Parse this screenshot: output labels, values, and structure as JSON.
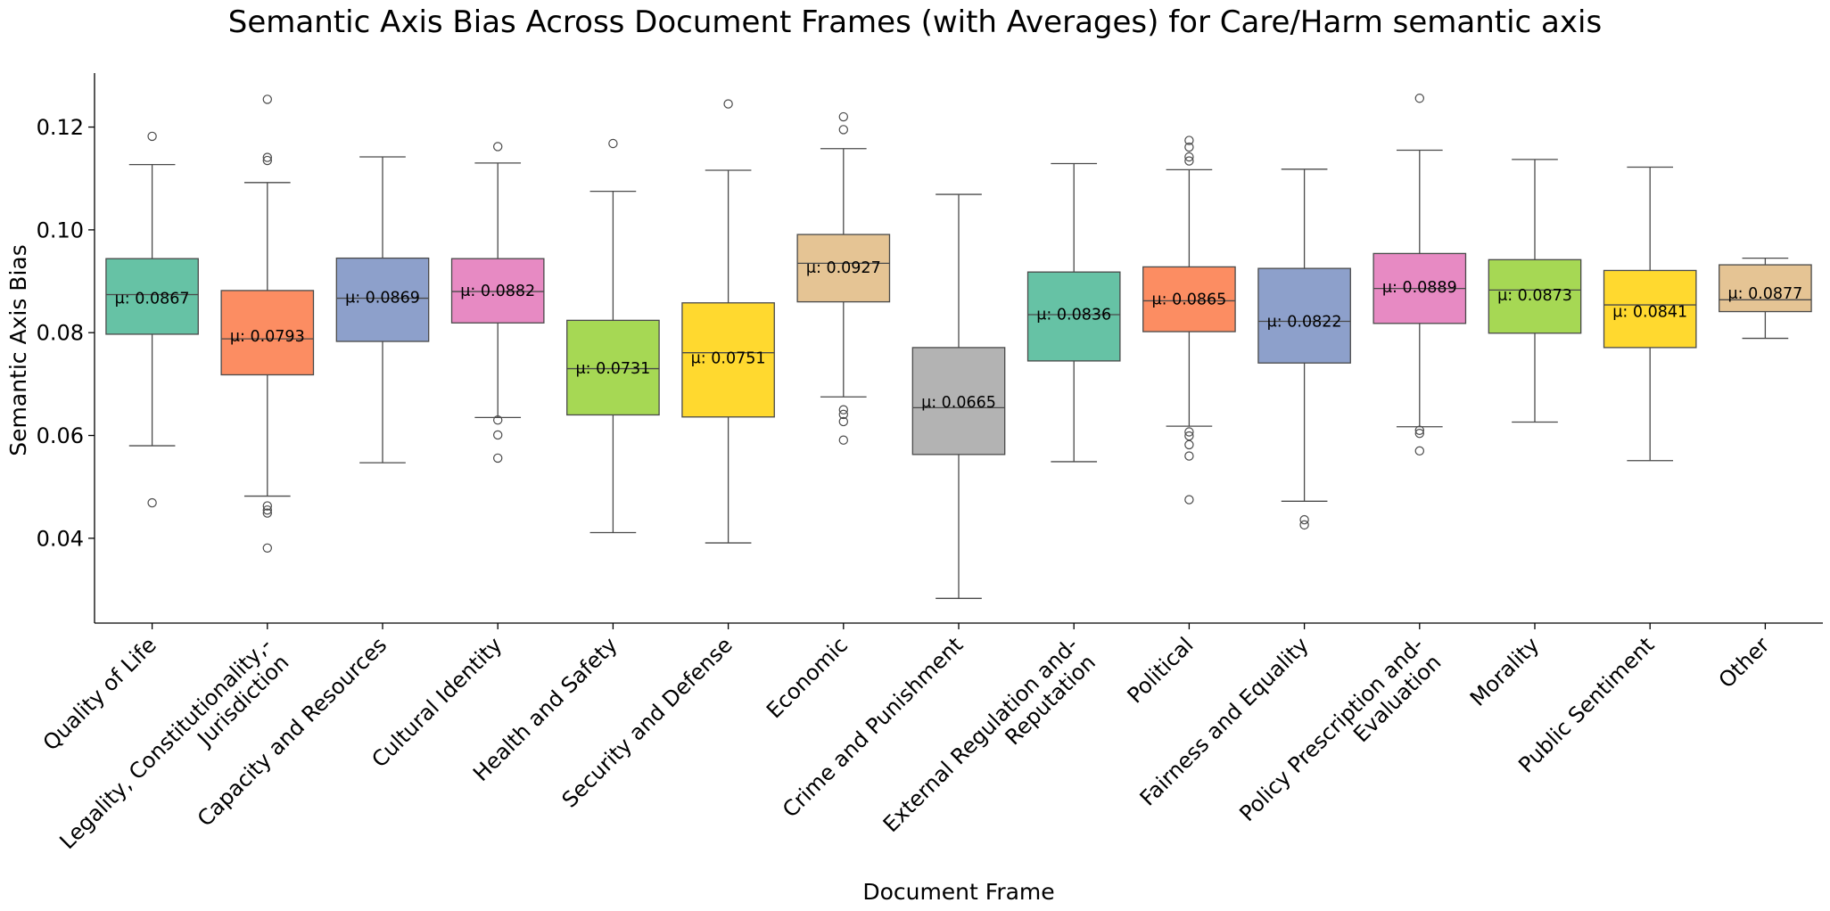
{
  "chart_data": {
    "type": "box",
    "title": "Semantic Axis Bias Across Document Frames (with Averages) for Care/Harm semantic axis",
    "xlabel": "Document Frame",
    "ylabel": "Semantic Axis Bias",
    "ylim": [
      0.0235,
      0.1305
    ],
    "yticks": [
      {
        "value": 0.04,
        "label": "0.04"
      },
      {
        "value": 0.06,
        "label": "0.06"
      },
      {
        "value": 0.08,
        "label": "0.08"
      },
      {
        "value": 0.1,
        "label": "0.10"
      },
      {
        "value": 0.12,
        "label": "0.12"
      }
    ],
    "grid": false,
    "legend": "none",
    "mean_prefix": "μ: ",
    "categories": [
      {
        "label": [
          "Quality of Life"
        ],
        "color": "#66c2a5",
        "mean": "0.0867",
        "q1": 0.0797,
        "median": 0.0874,
        "q3": 0.0944,
        "whisker_low": 0.058,
        "whisker_high": 0.1127,
        "fliers": [
          0.1182,
          0.0469
        ]
      },
      {
        "label": [
          "Legality, Constitutionality,-",
          "Jurisdiction"
        ],
        "color": "#fc8d62",
        "mean": "0.0793",
        "q1": 0.0718,
        "median": 0.0788,
        "q3": 0.0882,
        "whisker_low": 0.0482,
        "whisker_high": 0.1092,
        "fliers": [
          0.1254,
          0.1141,
          0.1135,
          0.0463,
          0.0455,
          0.0449,
          0.0381
        ]
      },
      {
        "label": [
          "Capacity and Resources"
        ],
        "color": "#8da0cb",
        "mean": "0.0869",
        "q1": 0.0783,
        "median": 0.0867,
        "q3": 0.0945,
        "whisker_low": 0.0547,
        "whisker_high": 0.1142,
        "fliers": []
      },
      {
        "label": [
          "Cultural Identity"
        ],
        "color": "#e78ac3",
        "mean": "0.0882",
        "q1": 0.0819,
        "median": 0.088,
        "q3": 0.0944,
        "whisker_low": 0.0635,
        "whisker_high": 0.113,
        "fliers": [
          0.1162,
          0.063,
          0.0601,
          0.0556
        ]
      },
      {
        "label": [
          "Health and Safety"
        ],
        "color": "#a6d854",
        "mean": "0.0731",
        "q1": 0.064,
        "median": 0.073,
        "q3": 0.0824,
        "whisker_low": 0.0411,
        "whisker_high": 0.1075,
        "fliers": [
          0.1168
        ]
      },
      {
        "label": [
          "Security and Defense"
        ],
        "color": "#ffd92f",
        "mean": "0.0751",
        "q1": 0.0636,
        "median": 0.0761,
        "q3": 0.0858,
        "whisker_low": 0.0391,
        "whisker_high": 0.1116,
        "fliers": [
          0.1245
        ]
      },
      {
        "label": [
          "Economic"
        ],
        "color": "#e5c494",
        "mean": "0.0927",
        "q1": 0.086,
        "median": 0.0935,
        "q3": 0.0991,
        "whisker_low": 0.0675,
        "whisker_high": 0.1158,
        "fliers": [
          0.122,
          0.1195,
          0.065,
          0.0641,
          0.0627,
          0.0591
        ]
      },
      {
        "label": [
          "Crime and Punishment"
        ],
        "color": "#b3b3b3",
        "mean": "0.0665",
        "q1": 0.0563,
        "median": 0.0654,
        "q3": 0.0771,
        "whisker_low": 0.0283,
        "whisker_high": 0.1069,
        "fliers": []
      },
      {
        "label": [
          "External Regulation and-",
          "Reputation"
        ],
        "color": "#66c2a5",
        "mean": "0.0836",
        "q1": 0.0745,
        "median": 0.0835,
        "q3": 0.0918,
        "whisker_low": 0.0549,
        "whisker_high": 0.1129,
        "fliers": []
      },
      {
        "label": [
          "Political"
        ],
        "color": "#fc8d62",
        "mean": "0.0865",
        "q1": 0.0802,
        "median": 0.0862,
        "q3": 0.0928,
        "whisker_low": 0.0618,
        "whisker_high": 0.1117,
        "fliers": [
          0.1174,
          0.1161,
          0.1142,
          0.1134,
          0.0607,
          0.0599,
          0.0582,
          0.056,
          0.0475
        ]
      },
      {
        "label": [
          "Fairness and Equality"
        ],
        "color": "#8da0cb",
        "mean": "0.0822",
        "q1": 0.0741,
        "median": 0.0822,
        "q3": 0.0925,
        "whisker_low": 0.0472,
        "whisker_high": 0.1118,
        "fliers": [
          0.0436,
          0.0426
        ]
      },
      {
        "label": [
          "Policy Prescription and-",
          "Evaluation"
        ],
        "color": "#e78ac3",
        "mean": "0.0889",
        "q1": 0.0818,
        "median": 0.0886,
        "q3": 0.0954,
        "whisker_low": 0.0617,
        "whisker_high": 0.1155,
        "fliers": [
          0.1256,
          0.061,
          0.0604,
          0.057
        ]
      },
      {
        "label": [
          "Morality"
        ],
        "color": "#a6d854",
        "mean": "0.0873",
        "q1": 0.0799,
        "median": 0.0883,
        "q3": 0.0942,
        "whisker_low": 0.0626,
        "whisker_high": 0.1137,
        "fliers": []
      },
      {
        "label": [
          "Public Sentiment"
        ],
        "color": "#ffd92f",
        "mean": "0.0841",
        "q1": 0.0771,
        "median": 0.0854,
        "q3": 0.0921,
        "whisker_low": 0.0551,
        "whisker_high": 0.1122,
        "fliers": []
      },
      {
        "label": [
          "Other"
        ],
        "color": "#e5c494",
        "mean": "0.0877",
        "q1": 0.0841,
        "median": 0.0864,
        "q3": 0.0932,
        "whisker_low": 0.0789,
        "whisker_high": 0.0945,
        "fliers": []
      }
    ]
  }
}
